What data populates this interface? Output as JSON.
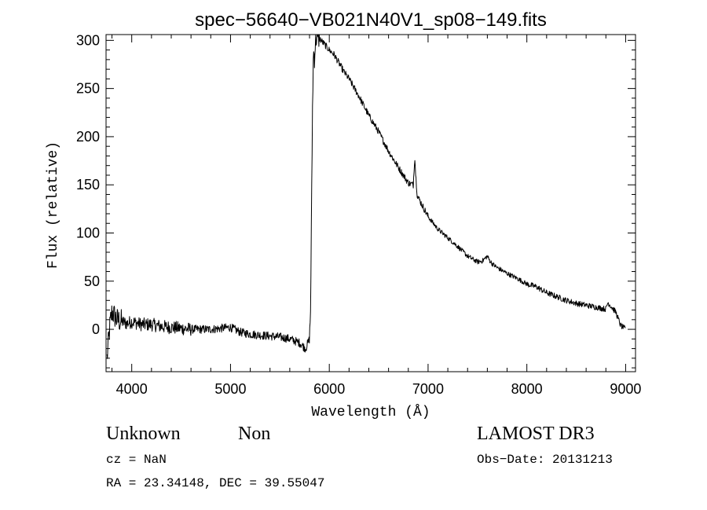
{
  "chart_data": {
    "type": "line",
    "title": "spec−56640−VB021N40V1_sp08−149.fits",
    "xlabel": "Wavelength (Å)",
    "ylabel": "Flux (relative)",
    "xlim": [
      3740,
      9100
    ],
    "ylim": [
      -44,
      306
    ],
    "xticks": [
      4000,
      5000,
      6000,
      7000,
      8000,
      9000
    ],
    "xtick_labels": [
      "4000",
      "5000",
      "6000",
      "7000",
      "8000",
      "9000"
    ],
    "yticks": [
      0,
      50,
      100,
      150,
      200,
      250,
      300
    ],
    "ytick_labels": [
      "0",
      "50",
      "100",
      "150",
      "200",
      "250",
      "300"
    ],
    "series": [
      {
        "name": "spectrum",
        "x": [
          3750,
          3780,
          3800,
          3850,
          3900,
          3950,
          4000,
          4100,
          4200,
          4300,
          4400,
          4500,
          4600,
          4700,
          4800,
          4900,
          5000,
          5100,
          5200,
          5300,
          5400,
          5500,
          5600,
          5700,
          5740,
          5760,
          5780,
          5800,
          5810,
          5820,
          5830,
          5840,
          5850,
          5860,
          5870,
          5880,
          5900,
          5950,
          6000,
          6050,
          6100,
          6150,
          6200,
          6300,
          6400,
          6500,
          6600,
          6700,
          6800,
          6850,
          6865,
          6875,
          6890,
          6900,
          7000,
          7100,
          7200,
          7300,
          7400,
          7500,
          7550,
          7600,
          7620,
          7650,
          7700,
          7800,
          7900,
          8000,
          8100,
          8200,
          8300,
          8400,
          8500,
          8600,
          8700,
          8800,
          8820,
          8850,
          8900,
          8950,
          9000
        ],
        "y": [
          -30,
          5,
          18,
          10,
          8,
          6,
          8,
          5,
          5,
          3,
          2,
          1,
          0,
          0,
          0,
          1,
          2,
          -3,
          -5,
          -6,
          -7,
          -8,
          -10,
          -14,
          -18,
          -20,
          -15,
          -10,
          20,
          120,
          230,
          290,
          282,
          298,
          303,
          300,
          302,
          296,
          290,
          285,
          276,
          267,
          260,
          242,
          222,
          205,
          185,
          168,
          152,
          150,
          180,
          160,
          140,
          137,
          117,
          104,
          95,
          86,
          76,
          70,
          71,
          76,
          72,
          68,
          64,
          58,
          53,
          47,
          44,
          38,
          34,
          30,
          27,
          25,
          23,
          21,
          28,
          24,
          18,
          4,
          0
        ]
      }
    ]
  },
  "annotations": {
    "class_text": "Unknown",
    "subclass_text": "Non",
    "survey_text": "LAMOST DR3",
    "cz_text": "cz = NaN",
    "obs_date_text": "Obs−Date: 20131213",
    "coords_text": "RA =  23.34148, DEC =  39.55047"
  }
}
